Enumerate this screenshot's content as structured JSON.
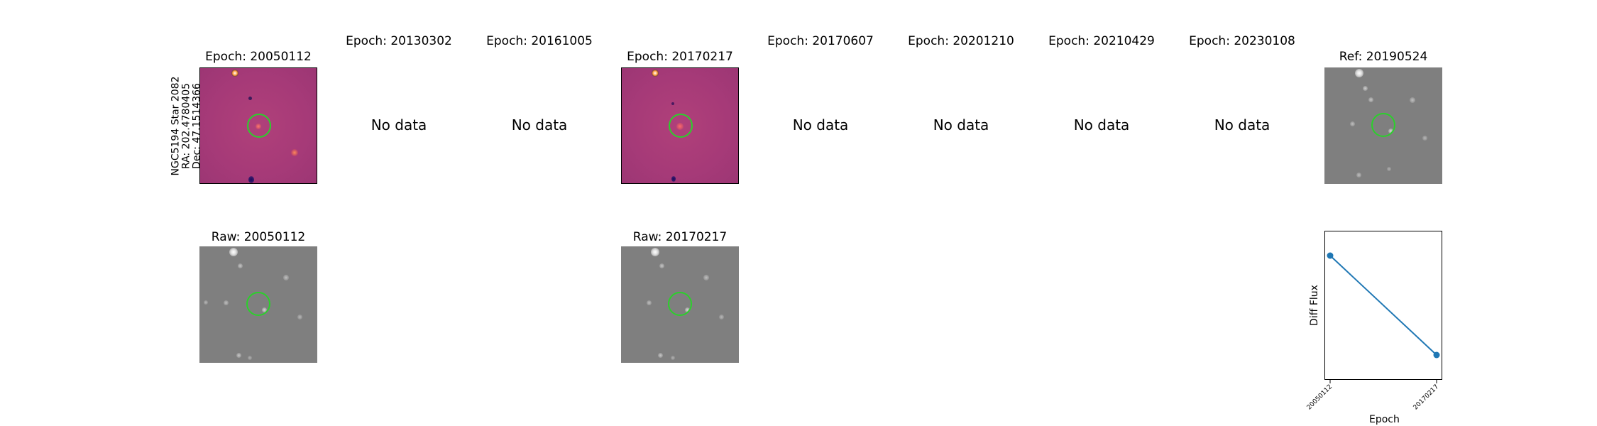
{
  "target": {
    "lines": [
      "NGC5194 Star 2082",
      "RA: 202.4780405",
      "Dec: 47.1514366"
    ]
  },
  "top_row": [
    {
      "title": "Epoch: 20050112",
      "has_data": true
    },
    {
      "title": "Epoch: 20130302",
      "has_data": false,
      "message": "No data"
    },
    {
      "title": "Epoch: 20161005",
      "has_data": false,
      "message": "No data"
    },
    {
      "title": "Epoch: 20170217",
      "has_data": true
    },
    {
      "title": "Epoch: 20170607",
      "has_data": false,
      "message": "No data"
    },
    {
      "title": "Epoch: 20201210",
      "has_data": false,
      "message": "No data"
    },
    {
      "title": "Epoch: 20210429",
      "has_data": false,
      "message": "No data"
    },
    {
      "title": "Epoch: 20230108",
      "has_data": false,
      "message": "No data"
    },
    {
      "title": "Ref: 20190524",
      "has_data": true
    }
  ],
  "bottom_row": [
    {
      "title": "Raw: 20050112"
    },
    {
      "title": "Raw: 20170217"
    }
  ],
  "chart_data": {
    "type": "line",
    "x": [
      "20050112",
      "20170217"
    ],
    "series": [
      {
        "values": [
          1.0,
          0.0
        ]
      }
    ],
    "xlabel": "Epoch",
    "ylabel": "Diff Flux",
    "y_ticks_shown": false,
    "grid": false,
    "line_color": "#1f77b4"
  },
  "colors": {
    "diff_bg": "#a63a78",
    "raw_bg": "#7f7f7f",
    "ring": "#2bd02b"
  }
}
